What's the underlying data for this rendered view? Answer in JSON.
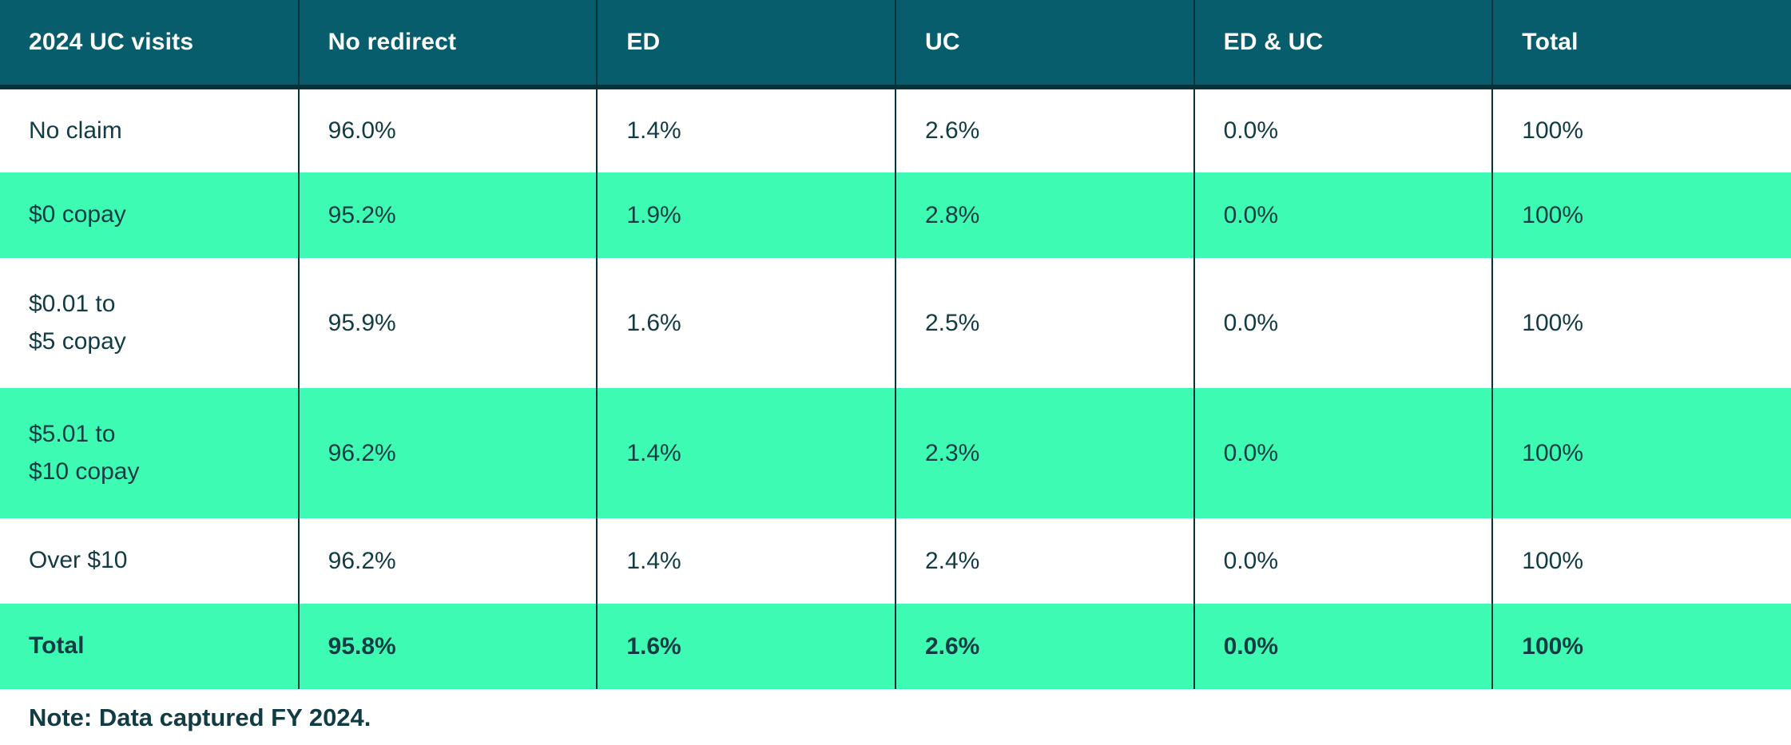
{
  "chart_data": {
    "type": "table",
    "title": "2024 UC visits",
    "columns": [
      "2024 UC visits",
      "No redirect",
      "ED",
      "UC",
      "ED & UC",
      "Total"
    ],
    "rows": [
      {
        "label": "No claim",
        "values": [
          "96.0%",
          "1.4%",
          "2.6%",
          "0.0%",
          "100%"
        ]
      },
      {
        "label": "$0 copay",
        "values": [
          "95.2%",
          "1.9%",
          "2.8%",
          "0.0%",
          "100%"
        ]
      },
      {
        "label": "$0.01 to\n$5 copay",
        "values": [
          "95.9%",
          "1.6%",
          "2.5%",
          "0.0%",
          "100%"
        ]
      },
      {
        "label": "$5.01 to\n$10 copay",
        "values": [
          "96.2%",
          "1.4%",
          "2.3%",
          "0.0%",
          "100%"
        ]
      },
      {
        "label": "Over $10",
        "values": [
          "96.2%",
          "1.4%",
          "2.4%",
          "0.0%",
          "100%"
        ]
      },
      {
        "label": "Total",
        "values": [
          "95.8%",
          "1.6%",
          "2.6%",
          "0.0%",
          "100%"
        ]
      }
    ],
    "note": "Note: Data captured FY 2024."
  },
  "colors": {
    "header_bg": "#075d6b",
    "header_text": "#ffffff",
    "stripe_green": "#3efbb4",
    "row_bg": "#ffffff",
    "border_dark": "#06323a",
    "text_dark": "#123c44"
  }
}
